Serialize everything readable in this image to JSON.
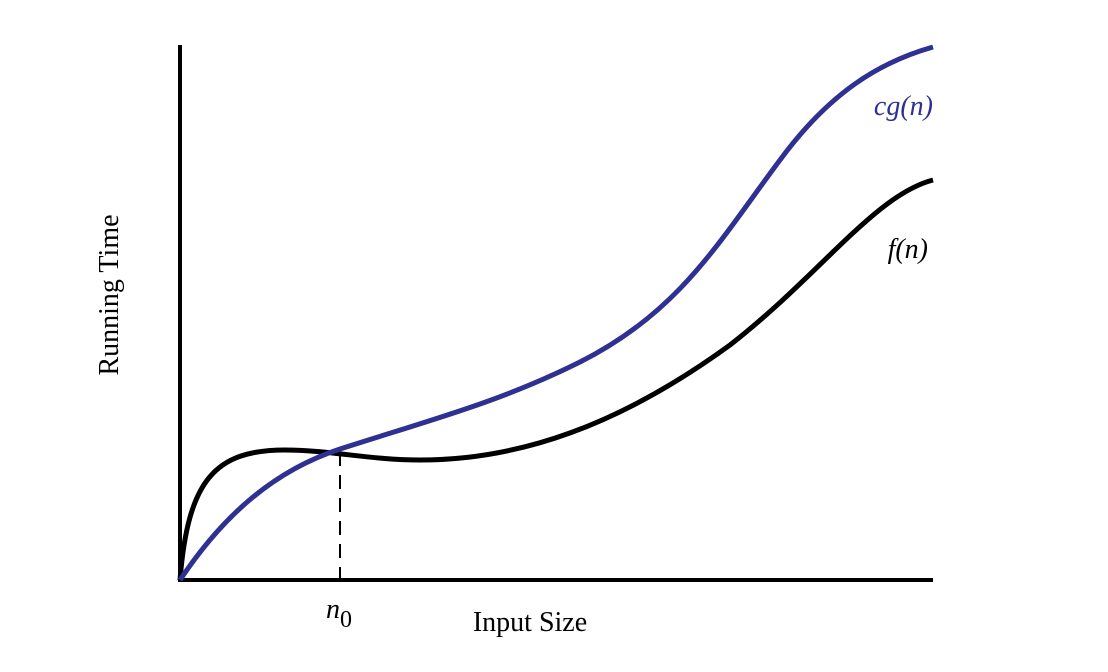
{
  "axes": {
    "x_label": "Input Size",
    "y_label": "Running Time"
  },
  "curves": {
    "upper": "cg(n)",
    "lower": "f(n)"
  },
  "marker": {
    "base": "n",
    "sub": "0"
  }
}
